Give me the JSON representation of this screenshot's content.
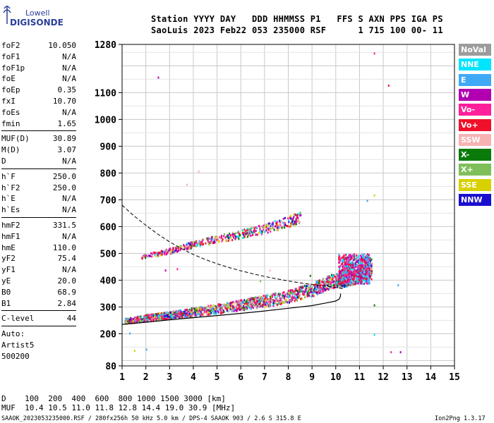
{
  "logo": {
    "line1": "Lowell",
    "line2": "DIGISONDE"
  },
  "header": {
    "line1": "Station YYYY DAY   DDD HHMMSS P1   FFS S AXN PPS IGA PS",
    "line2": "SaoLuis 2023 Feb22 053 235000 RSF      1 715 100 00- 11"
  },
  "params_groups": [
    [
      {
        "k": "foF2",
        "v": "10.050"
      },
      {
        "k": "foF1",
        "v": "N/A"
      },
      {
        "k": "foF1p",
        "v": "N/A"
      },
      {
        "k": "foE",
        "v": "N/A"
      },
      {
        "k": "foEp",
        "v": "0.35"
      },
      {
        "k": "fxI",
        "v": "10.70"
      },
      {
        "k": "foEs",
        "v": "N/A"
      },
      {
        "k": "fmin",
        "v": "1.65"
      }
    ],
    [
      {
        "k": "MUF(D)",
        "v": "30.89"
      },
      {
        "k": "M(D)",
        "v": "3.07"
      },
      {
        "k": "D",
        "v": "N/A"
      }
    ],
    [
      {
        "k": "h`F",
        "v": "250.0"
      },
      {
        "k": "h`F2",
        "v": "250.0"
      },
      {
        "k": "h`E",
        "v": "N/A"
      },
      {
        "k": "h`Es",
        "v": "N/A"
      }
    ],
    [
      {
        "k": "hmF2",
        "v": "331.5"
      },
      {
        "k": "hmF1",
        "v": "N/A"
      },
      {
        "k": "hmE",
        "v": "110.0"
      },
      {
        "k": "yF2",
        "v": "75.4"
      },
      {
        "k": "yF1",
        "v": "N/A"
      },
      {
        "k": "yE",
        "v": "20.0"
      },
      {
        "k": "B0",
        "v": "68.9"
      },
      {
        "k": "B1",
        "v": "2.84"
      }
    ],
    [
      {
        "k": "C-level",
        "v": "44"
      }
    ]
  ],
  "auto_lines": [
    "Auto:",
    "Artist5",
    "500200"
  ],
  "legend": [
    {
      "label": "NoVal",
      "color": "#9c9c9c"
    },
    {
      "label": "NNE",
      "color": "#00e5ff"
    },
    {
      "label": "E",
      "color": "#3fa9f5"
    },
    {
      "label": "W",
      "color": "#b000b0"
    },
    {
      "label": "Vo-",
      "color": "#ff1f9a"
    },
    {
      "label": "Vo+",
      "color": "#f0102a"
    },
    {
      "label": "SSW",
      "color": "#f7b3b3"
    },
    {
      "label": "X-",
      "color": "#0a7a0a"
    },
    {
      "label": "X+",
      "color": "#7fbf5a"
    },
    {
      "label": "SSE",
      "color": "#d8d000"
    },
    {
      "label": "NNW",
      "color": "#1a0fcf"
    }
  ],
  "bottom": {
    "distance_line": "D    100  200  400  600  800 1000 1500 3000 [km]",
    "muf_line": "MUF  10.4 10.5 11.0 11.8 12.8 14.4 19.0 30.9 [MHz]",
    "footer_left": "SAAOK_2023053235000.RSF / 280fx256h 50 kHz 5.0 km / DPS-4 SAAOK 903 / 2.6 S 315.8 E",
    "footer_right": "Ion2Png 1.3.17"
  },
  "chart_data": {
    "type": "scatter",
    "title": "",
    "xlabel": "",
    "ylabel": "",
    "xlim": [
      1,
      15
    ],
    "ylim": [
      80,
      1280
    ],
    "x_ticks": [
      1,
      2,
      3,
      4,
      5,
      6,
      7,
      8,
      9,
      10,
      11,
      12,
      13,
      14,
      15
    ],
    "y_ticks": [
      80,
      200,
      300,
      400,
      500,
      600,
      700,
      800,
      900,
      1000,
      1100,
      1280
    ],
    "grid": true,
    "series": [
      {
        "name": "O-trace",
        "color_key": "mixed",
        "points": [
          [
            1.1,
            250
          ],
          [
            1.5,
            255
          ],
          [
            2.0,
            262
          ],
          [
            2.5,
            268
          ],
          [
            3.0,
            272
          ],
          [
            3.5,
            278
          ],
          [
            4.0,
            285
          ],
          [
            4.5,
            290
          ],
          [
            5.0,
            296
          ],
          [
            5.5,
            302
          ],
          [
            6.0,
            310
          ],
          [
            6.5,
            318
          ],
          [
            7.0,
            325
          ],
          [
            7.5,
            333
          ],
          [
            8.0,
            343
          ],
          [
            8.5,
            355
          ],
          [
            9.0,
            368
          ],
          [
            9.5,
            385
          ],
          [
            10.0,
            405
          ],
          [
            10.3,
            420
          ],
          [
            10.6,
            440
          ],
          [
            10.9,
            455
          ],
          [
            11.2,
            465
          ],
          [
            11.5,
            458
          ]
        ]
      },
      {
        "name": "X-trace",
        "color_key": "mixed",
        "points": [
          [
            10.0,
            390
          ],
          [
            10.3,
            395
          ],
          [
            10.6,
            405
          ],
          [
            10.9,
            420
          ],
          [
            11.2,
            435
          ],
          [
            11.5,
            445
          ]
        ]
      },
      {
        "name": "Second-hop",
        "color_key": "mixed",
        "points": [
          [
            1.8,
            490
          ],
          [
            2.5,
            502
          ],
          [
            3.0,
            512
          ],
          [
            3.5,
            524
          ],
          [
            4.0,
            537
          ],
          [
            4.5,
            548
          ],
          [
            5.0,
            556
          ],
          [
            5.5,
            565
          ],
          [
            6.0,
            575
          ],
          [
            6.5,
            585
          ],
          [
            7.0,
            596
          ],
          [
            7.5,
            608
          ],
          [
            8.0,
            622
          ],
          [
            8.5,
            640
          ]
        ]
      },
      {
        "name": "profile_dashed",
        "points": [
          [
            1.0,
            680
          ],
          [
            1.5,
            640
          ],
          [
            2.0,
            605
          ],
          [
            2.5,
            572
          ],
          [
            3.0,
            543
          ],
          [
            3.5,
            518
          ],
          [
            4.0,
            496
          ],
          [
            4.5,
            477
          ],
          [
            5.0,
            461
          ],
          [
            5.5,
            447
          ],
          [
            6.0,
            435
          ],
          [
            6.5,
            424
          ],
          [
            7.0,
            414
          ],
          [
            7.5,
            405
          ],
          [
            8.0,
            397
          ],
          [
            8.5,
            390
          ],
          [
            9.0,
            384
          ],
          [
            9.5,
            378
          ],
          [
            10.0,
            373
          ],
          [
            10.3,
            368
          ]
        ]
      },
      {
        "name": "profile_solid",
        "points": [
          [
            1.0,
            235
          ],
          [
            2.0,
            243
          ],
          [
            3.0,
            252
          ],
          [
            4.0,
            260
          ],
          [
            5.0,
            268
          ],
          [
            6.0,
            276
          ],
          [
            7.0,
            285
          ],
          [
            8.0,
            295
          ],
          [
            9.0,
            305
          ],
          [
            9.6,
            315
          ],
          [
            10.0,
            322
          ],
          [
            10.15,
            330
          ],
          [
            10.2,
            340
          ],
          [
            10.2,
            350
          ]
        ]
      }
    ]
  }
}
